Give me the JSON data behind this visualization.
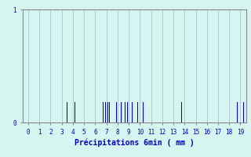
{
  "xlabel": "Précipitations 6min ( mm )",
  "xlim": [
    -0.5,
    19.5
  ],
  "ylim": [
    0,
    1.0
  ],
  "yticks": [
    0,
    1
  ],
  "xticks": [
    0,
    1,
    2,
    3,
    4,
    5,
    6,
    7,
    8,
    9,
    10,
    11,
    12,
    13,
    14,
    15,
    16,
    17,
    18,
    19
  ],
  "bar_positions": [
    3.5,
    4.2,
    6.7,
    6.9,
    7.1,
    7.3,
    7.9,
    8.3,
    8.7,
    8.9,
    9.3,
    9.8,
    10.3,
    13.7,
    18.7,
    19.3
  ],
  "bar_heights": [
    0.18,
    0.18,
    0.18,
    0.18,
    0.18,
    0.18,
    0.18,
    0.18,
    0.18,
    0.18,
    0.18,
    0.18,
    0.18,
    0.18,
    0.18,
    0.18
  ],
  "bar_color": "#0000dd",
  "bar_width": 0.07,
  "bg_color": "#d6f5f0",
  "grid_color": "#b2cccc",
  "axis_color": "#888888",
  "tick_label_color": "#0000cc",
  "xlabel_color": "#0000cc",
  "figure_bg": "#d6f5f0"
}
